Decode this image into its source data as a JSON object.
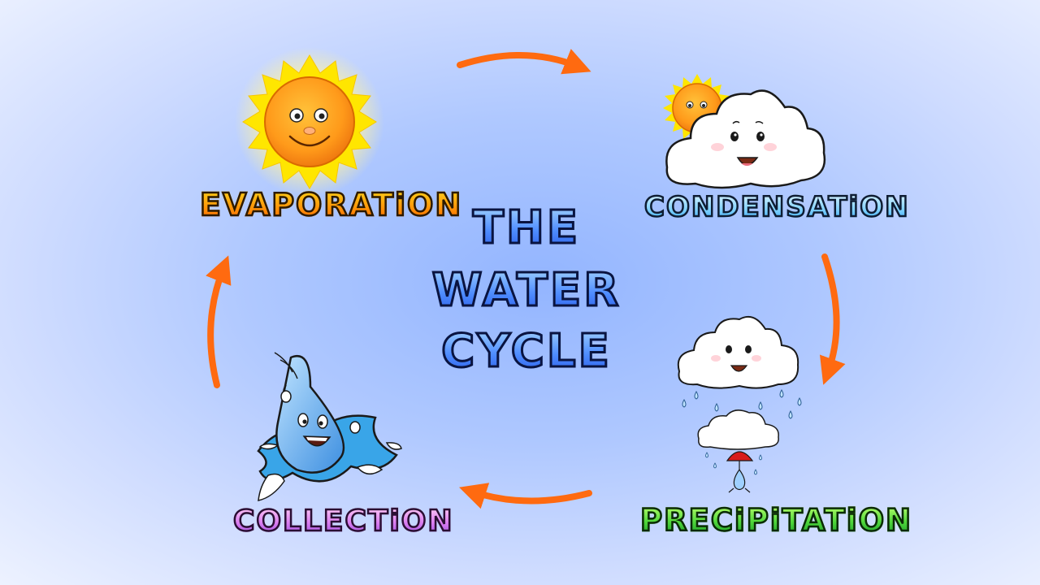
{
  "diagram": {
    "title_lines": [
      "THE",
      "WATER",
      "CYCLE"
    ],
    "stages": {
      "evaporation": "EVAPORATiON",
      "condensation": "CONDENSATiON",
      "precipitation": "PRECiPiTATiON",
      "collection": "COLLECTiON"
    },
    "colors": {
      "arrow": "#ff6a10",
      "sun": "#ff9a1a",
      "sun_rays": "#ffe600",
      "cloud": "#ffffff",
      "water": "#5aa8f0",
      "umbrella": "#d81c1c"
    },
    "icons": [
      "sun-icon",
      "sun-cloud-icon",
      "rain-cloud-icon",
      "water-drop-icon"
    ]
  }
}
